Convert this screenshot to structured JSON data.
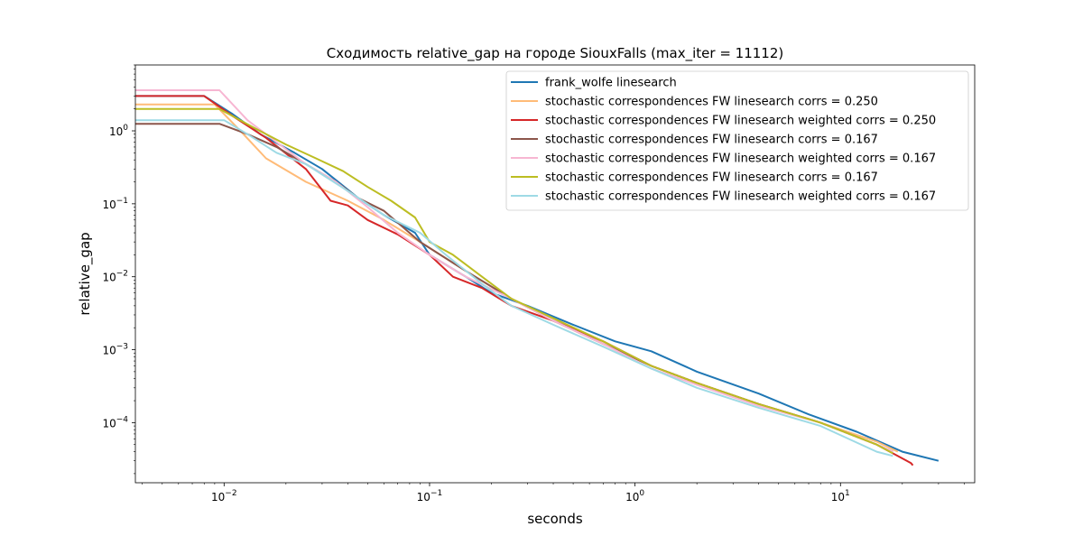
{
  "chart_data": {
    "type": "line",
    "title": "Сходимость relative_gap на городе SiouxFalls  (max_iter = 11112)",
    "xlabel": "seconds",
    "ylabel": "relative_gap",
    "xscale": "log",
    "yscale": "log",
    "xlim": [
      0.0037,
      45
    ],
    "ylim": [
      1.5e-05,
      8
    ],
    "x_ticks": [
      {
        "value": 0.01,
        "base": "10",
        "exp": "−2"
      },
      {
        "value": 0.1,
        "base": "10",
        "exp": "−1"
      },
      {
        "value": 1,
        "base": "10",
        "exp": "0"
      },
      {
        "value": 10,
        "base": "10",
        "exp": "1"
      }
    ],
    "y_ticks": [
      {
        "value": 1,
        "base": "10",
        "exp": "0"
      },
      {
        "value": 0.1,
        "base": "10",
        "exp": "−1"
      },
      {
        "value": 0.01,
        "base": "10",
        "exp": "−2"
      },
      {
        "value": 0.001,
        "base": "10",
        "exp": "−3"
      },
      {
        "value": 0.0001,
        "base": "10",
        "exp": "−4"
      }
    ],
    "grid": false,
    "legend_position": "top-right",
    "series": [
      {
        "name": "frank_wolfe linesearch",
        "color": "#1f77b4",
        "points": [
          [
            0.0037,
            3.0
          ],
          [
            0.008,
            3.0
          ],
          [
            0.011,
            1.7
          ],
          [
            0.015,
            0.9
          ],
          [
            0.022,
            0.5
          ],
          [
            0.03,
            0.3
          ],
          [
            0.045,
            0.12
          ],
          [
            0.06,
            0.07
          ],
          [
            0.085,
            0.04
          ],
          [
            0.1,
            0.02
          ],
          [
            0.15,
            0.01
          ],
          [
            0.2,
            0.006
          ],
          [
            0.3,
            0.004
          ],
          [
            0.5,
            0.0022
          ],
          [
            0.8,
            0.0013
          ],
          [
            1.2,
            0.00095
          ],
          [
            2,
            0.0005
          ],
          [
            4,
            0.00025
          ],
          [
            7,
            0.00013
          ],
          [
            12,
            7.5e-05
          ],
          [
            20,
            4e-05
          ],
          [
            30,
            3e-05
          ]
        ]
      },
      {
        "name": "stochastic correspondences FW linesearch corrs = 0.250",
        "color": "#ffbb78",
        "points": [
          [
            0.0037,
            2.3
          ],
          [
            0.009,
            2.3
          ],
          [
            0.012,
            1.0
          ],
          [
            0.016,
            0.42
          ],
          [
            0.025,
            0.2
          ],
          [
            0.04,
            0.11
          ],
          [
            0.06,
            0.06
          ],
          [
            0.09,
            0.03
          ],
          [
            0.15,
            0.012
          ],
          [
            0.25,
            0.005
          ],
          [
            0.4,
            0.0025
          ],
          [
            0.7,
            0.0012
          ],
          [
            1.2,
            0.0006
          ],
          [
            2,
            0.00035
          ],
          [
            4,
            0.00018
          ],
          [
            8,
            0.0001
          ],
          [
            15,
            5.5e-05
          ],
          [
            19,
            4e-05
          ]
        ]
      },
      {
        "name": "stochastic correspondences FW linesearch weighted corrs = 0.250",
        "color": "#d62728",
        "points": [
          [
            0.0037,
            3.0
          ],
          [
            0.008,
            3.0
          ],
          [
            0.011,
            1.6
          ],
          [
            0.016,
            0.8
          ],
          [
            0.025,
            0.3
          ],
          [
            0.033,
            0.11
          ],
          [
            0.04,
            0.095
          ],
          [
            0.05,
            0.06
          ],
          [
            0.07,
            0.038
          ],
          [
            0.1,
            0.02
          ],
          [
            0.13,
            0.01
          ],
          [
            0.18,
            0.007
          ],
          [
            0.25,
            0.004
          ],
          [
            0.4,
            0.0025
          ],
          [
            0.7,
            0.0013
          ],
          [
            1.2,
            0.0006
          ],
          [
            2,
            0.00035
          ],
          [
            4,
            0.00018
          ],
          [
            8,
            0.0001
          ],
          [
            15,
            5e-05
          ],
          [
            22,
            2.8e-05
          ],
          [
            22.5,
            2.6e-05
          ]
        ]
      },
      {
        "name": "stochastic correspondences FW linesearch corrs = 0.167",
        "color": "#8c564b",
        "points": [
          [
            0.0037,
            1.25
          ],
          [
            0.0095,
            1.25
          ],
          [
            0.013,
            0.9
          ],
          [
            0.018,
            0.6
          ],
          [
            0.025,
            0.35
          ],
          [
            0.035,
            0.2
          ],
          [
            0.045,
            0.12
          ],
          [
            0.06,
            0.08
          ],
          [
            0.09,
            0.03
          ],
          [
            0.15,
            0.012
          ],
          [
            0.25,
            0.005
          ],
          [
            0.4,
            0.0025
          ],
          [
            0.7,
            0.0012
          ],
          [
            1.2,
            0.0006
          ],
          [
            2,
            0.00035
          ],
          [
            4,
            0.00018
          ],
          [
            8,
            0.0001
          ],
          [
            15,
            5e-05
          ],
          [
            18,
            4e-05
          ]
        ]
      },
      {
        "name": "stochastic correspondences FW linesearch weighted corrs = 0.167",
        "color": "#f7b6d2",
        "points": [
          [
            0.0037,
            3.6
          ],
          [
            0.0095,
            3.6
          ],
          [
            0.013,
            1.4
          ],
          [
            0.018,
            0.7
          ],
          [
            0.025,
            0.35
          ],
          [
            0.035,
            0.2
          ],
          [
            0.05,
            0.09
          ],
          [
            0.07,
            0.04
          ],
          [
            0.1,
            0.02
          ],
          [
            0.15,
            0.01
          ],
          [
            0.25,
            0.005
          ],
          [
            0.4,
            0.0025
          ],
          [
            0.7,
            0.0012
          ],
          [
            1.2,
            0.00055
          ],
          [
            2,
            0.00033
          ],
          [
            4,
            0.00017
          ],
          [
            8,
            0.0001
          ],
          [
            15,
            5e-05
          ],
          [
            18,
            4e-05
          ]
        ]
      },
      {
        "name": "stochastic correspondences FW linesearch corrs = 0.167",
        "color": "#bcbd22",
        "points": [
          [
            0.0037,
            2.0
          ],
          [
            0.0095,
            2.0
          ],
          [
            0.014,
            1.1
          ],
          [
            0.02,
            0.65
          ],
          [
            0.028,
            0.42
          ],
          [
            0.038,
            0.28
          ],
          [
            0.05,
            0.17
          ],
          [
            0.065,
            0.11
          ],
          [
            0.085,
            0.065
          ],
          [
            0.1,
            0.03
          ],
          [
            0.13,
            0.02
          ],
          [
            0.18,
            0.01
          ],
          [
            0.25,
            0.005
          ],
          [
            0.4,
            0.0027
          ],
          [
            0.7,
            0.0013
          ],
          [
            1.2,
            0.0006
          ],
          [
            2,
            0.00035
          ],
          [
            4,
            0.00018
          ],
          [
            8,
            0.0001
          ],
          [
            15,
            5e-05
          ],
          [
            18,
            3.8e-05
          ]
        ]
      },
      {
        "name": "stochastic correspondences FW linesearch weighted corrs = 0.167",
        "color": "#9edae5",
        "points": [
          [
            0.0037,
            1.4
          ],
          [
            0.01,
            1.4
          ],
          [
            0.013,
            0.9
          ],
          [
            0.018,
            0.5
          ],
          [
            0.025,
            0.35
          ],
          [
            0.04,
            0.15
          ],
          [
            0.06,
            0.07
          ],
          [
            0.09,
            0.04
          ],
          [
            0.12,
            0.02
          ],
          [
            0.18,
            0.008
          ],
          [
            0.25,
            0.004
          ],
          [
            0.4,
            0.0022
          ],
          [
            0.7,
            0.0011
          ],
          [
            1.2,
            0.00055
          ],
          [
            2,
            0.0003
          ],
          [
            4,
            0.00016
          ],
          [
            8,
            9e-05
          ],
          [
            15,
            4e-05
          ],
          [
            18,
            3.5e-05
          ]
        ]
      }
    ]
  }
}
